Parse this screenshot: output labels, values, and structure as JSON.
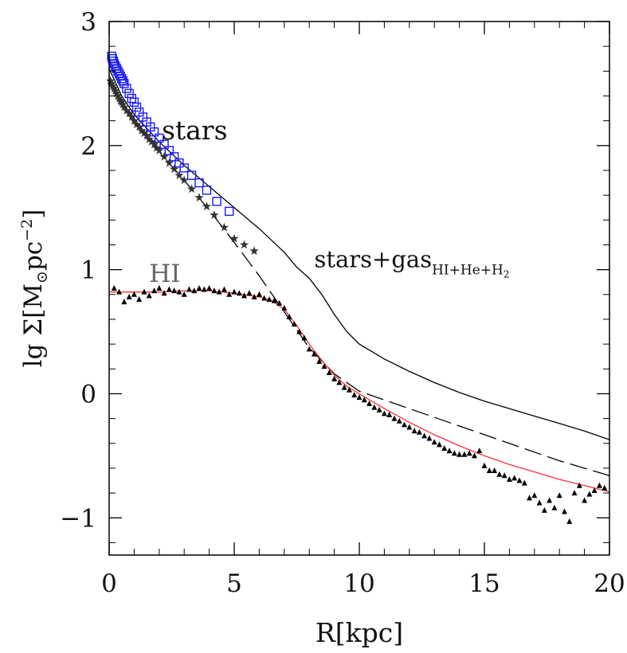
{
  "chart_data": {
    "type": "line",
    "title": "",
    "xlabel": "R[kpc]",
    "ylabel_parts": {
      "pre": "lg Σ[M",
      "sub": "⊙",
      "mid": "pc",
      "sup": "−2",
      "post": "]"
    },
    "xlim": [
      0,
      20
    ],
    "ylim": [
      -1.3,
      3
    ],
    "xticks": [
      0,
      5,
      10,
      15,
      20
    ],
    "xtick_labels": [
      "0",
      "5",
      "10",
      "15",
      "20"
    ],
    "yticks": [
      -1,
      0,
      1,
      2,
      3
    ],
    "ytick_labels": [
      "−1",
      "0",
      "1",
      "2",
      "3"
    ],
    "grid": false,
    "annotations": {
      "stars": {
        "text": "stars",
        "x": 2.1,
        "y": 2.05
      },
      "hi": {
        "text": "HI",
        "x": 1.6,
        "y": 0.9
      },
      "total": {
        "text": "stars+gas",
        "sub": "HI+He+H",
        "subsub": "2",
        "x": 8.2,
        "y": 1.02
      }
    },
    "colors": {
      "hi_fit": "#ff3030",
      "stars_boxes": "#1a1aff",
      "data": "#000000",
      "total": "#000000"
    },
    "series": [
      {
        "style": "solid",
        "color": "#000000",
        "x": [
          0.0,
          0.5,
          1.0,
          2.0,
          3.0,
          4.0,
          5.0,
          6.0,
          7.0,
          7.5,
          8.0,
          8.5,
          9.0,
          9.5,
          10.0,
          11.0,
          12.0,
          13.0,
          14.0,
          15.0,
          16.0,
          17.0,
          18.0,
          19.0,
          20.0
        ],
        "y": [
          2.62,
          2.4,
          2.25,
          2.03,
          1.84,
          1.67,
          1.5,
          1.33,
          1.14,
          1.02,
          0.93,
          0.8,
          0.64,
          0.5,
          0.4,
          0.28,
          0.18,
          0.09,
          0.01,
          -0.06,
          -0.12,
          -0.18,
          -0.24,
          -0.3,
          -0.37
        ]
      },
      {
        "style": "dashed",
        "color": "#000000",
        "x": [
          0.0,
          1.0,
          2.0,
          3.0,
          4.0,
          5.0,
          6.0,
          7.0,
          8.0,
          9.0,
          10.0,
          12.0,
          14.0,
          16.0,
          18.0,
          20.0
        ],
        "y": [
          2.5,
          2.2,
          1.95,
          1.72,
          1.48,
          1.22,
          0.95,
          0.66,
          0.37,
          0.16,
          0.02,
          -0.12,
          -0.26,
          -0.4,
          -0.54,
          -0.66
        ]
      },
      {
        "style": "solid",
        "color": "#ff3030",
        "x": [
          0.0,
          1.0,
          2.0,
          3.0,
          4.0,
          5.0,
          6.0,
          6.5,
          7.0,
          7.5,
          8.0,
          8.5,
          9.0,
          9.5,
          10.0,
          11.0,
          12.0,
          13.0,
          14.0,
          15.0,
          16.0,
          17.0,
          18.0,
          19.0,
          20.0
        ],
        "y": [
          0.82,
          0.82,
          0.82,
          0.83,
          0.83,
          0.81,
          0.78,
          0.75,
          0.68,
          0.55,
          0.4,
          0.27,
          0.15,
          0.06,
          0.0,
          -0.12,
          -0.23,
          -0.33,
          -0.42,
          -0.5,
          -0.57,
          -0.63,
          -0.69,
          -0.74,
          -0.79
        ]
      }
    ],
    "scatter": [
      {
        "marker": "star",
        "color": "#333333",
        "x": [
          0.05,
          0.1,
          0.15,
          0.2,
          0.25,
          0.3,
          0.35,
          0.4,
          0.45,
          0.5,
          0.55,
          0.6,
          0.7,
          0.8,
          0.9,
          1.0,
          1.1,
          1.2,
          1.3,
          1.4,
          1.5,
          1.6,
          1.7,
          1.8,
          1.9,
          2.0,
          2.2,
          2.4,
          2.6,
          2.8,
          3.0,
          3.3,
          3.6,
          3.9,
          4.2,
          4.6,
          5.0,
          5.4,
          5.8
        ],
        "y": [
          2.52,
          2.5,
          2.48,
          2.46,
          2.44,
          2.42,
          2.4,
          2.38,
          2.36,
          2.35,
          2.33,
          2.31,
          2.28,
          2.26,
          2.23,
          2.2,
          2.17,
          2.15,
          2.12,
          2.1,
          2.08,
          2.05,
          2.03,
          2.01,
          1.98,
          1.96,
          1.91,
          1.86,
          1.81,
          1.76,
          1.72,
          1.65,
          1.58,
          1.51,
          1.44,
          1.34,
          1.25,
          1.2,
          1.15
        ]
      },
      {
        "marker": "box",
        "color": "#1a1aff",
        "x": [
          0.1,
          0.13,
          0.17,
          0.2,
          0.25,
          0.3,
          0.35,
          0.4,
          0.45,
          0.5,
          0.55,
          0.6,
          0.7,
          0.8,
          0.9,
          1.0,
          1.1,
          1.2,
          1.35,
          1.5,
          1.65,
          1.8,
          2.0,
          2.2,
          2.4,
          2.6,
          2.8,
          3.0,
          3.3,
          3.6,
          3.9,
          4.3,
          4.8
        ],
        "y": [
          2.72,
          2.7,
          2.68,
          2.66,
          2.64,
          2.62,
          2.6,
          2.58,
          2.56,
          2.54,
          2.52,
          2.5,
          2.46,
          2.42,
          2.38,
          2.35,
          2.31,
          2.27,
          2.23,
          2.19,
          2.15,
          2.11,
          2.06,
          2.01,
          1.96,
          1.91,
          1.86,
          1.82,
          1.76,
          1.7,
          1.64,
          1.55,
          1.47
        ]
      },
      {
        "marker": "triangle",
        "color": "#000000",
        "x": [
          0.2,
          0.4,
          0.6,
          0.8,
          1.0,
          1.2,
          1.4,
          1.6,
          1.8,
          2.0,
          2.2,
          2.4,
          2.6,
          2.8,
          3.0,
          3.2,
          3.4,
          3.6,
          3.8,
          4.0,
          4.2,
          4.4,
          4.6,
          4.8,
          5.0,
          5.2,
          5.4,
          5.6,
          5.8,
          6.0,
          6.2,
          6.4,
          6.6,
          6.8,
          7.0,
          7.2,
          7.4,
          7.6,
          7.8,
          8.0,
          8.2,
          8.4,
          8.6,
          8.8,
          9.0,
          9.2,
          9.4,
          9.6,
          9.8,
          10.0,
          10.2,
          10.4,
          10.6,
          10.8,
          11.0,
          11.2,
          11.4,
          11.6,
          11.8,
          12.0,
          12.2,
          12.4,
          12.6,
          12.8,
          13.0,
          13.2,
          13.4,
          13.6,
          13.8,
          14.0,
          14.2,
          14.4,
          14.6,
          14.8,
          15.0,
          15.2,
          15.4,
          15.6,
          15.8,
          16.0,
          16.2,
          16.4,
          16.6,
          16.8,
          17.0,
          17.2,
          17.4,
          17.6,
          17.8,
          18.0,
          18.2,
          18.4,
          18.6,
          18.8,
          19.0,
          19.2,
          19.4,
          19.6,
          19.8
        ],
        "y": [
          0.85,
          0.82,
          0.74,
          0.78,
          0.8,
          0.76,
          0.82,
          0.79,
          0.83,
          0.85,
          0.81,
          0.84,
          0.83,
          0.82,
          0.8,
          0.84,
          0.83,
          0.85,
          0.84,
          0.85,
          0.83,
          0.82,
          0.84,
          0.8,
          0.82,
          0.81,
          0.79,
          0.81,
          0.78,
          0.8,
          0.77,
          0.76,
          0.75,
          0.73,
          0.69,
          0.62,
          0.56,
          0.5,
          0.45,
          0.36,
          0.32,
          0.26,
          0.22,
          0.17,
          0.12,
          0.09,
          0.05,
          0.03,
          -0.01,
          -0.03,
          -0.05,
          -0.08,
          -0.11,
          -0.13,
          -0.16,
          -0.17,
          -0.2,
          -0.22,
          -0.25,
          -0.27,
          -0.3,
          -0.31,
          -0.34,
          -0.36,
          -0.39,
          -0.41,
          -0.44,
          -0.46,
          -0.48,
          -0.49,
          -0.49,
          -0.48,
          -0.5,
          -0.46,
          -0.58,
          -0.62,
          -0.62,
          -0.65,
          -0.66,
          -0.69,
          -0.68,
          -0.7,
          -0.72,
          -0.84,
          -0.82,
          -0.88,
          -0.94,
          -0.86,
          -0.92,
          -0.82,
          -0.95,
          -1.03,
          -0.8,
          -0.74,
          -0.86,
          -0.81,
          -0.78,
          -0.74,
          -0.76
        ]
      }
    ]
  }
}
